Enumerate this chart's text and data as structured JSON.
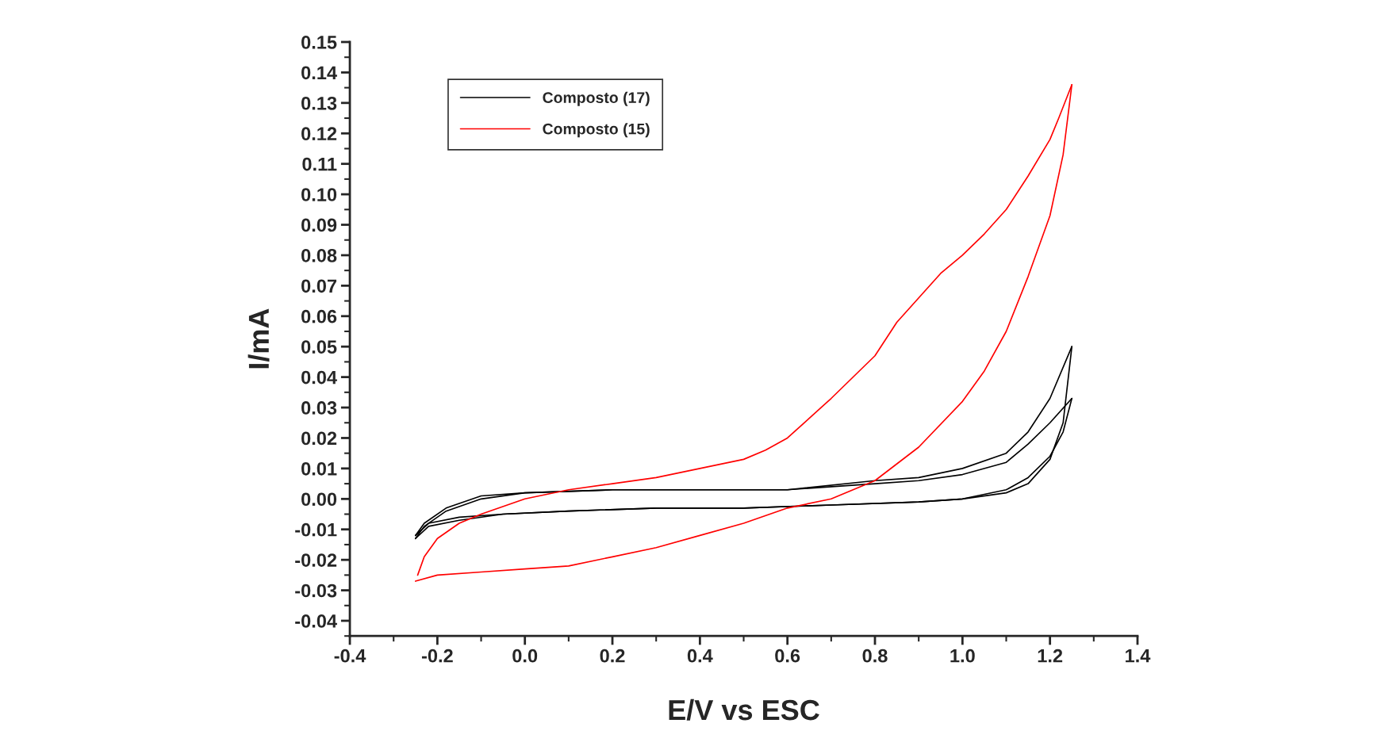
{
  "chart_data": {
    "type": "line",
    "xlabel": "E/V vs ESC",
    "ylabel": "I/mA",
    "xlim": [
      -0.4,
      1.4
    ],
    "ylim": [
      -0.045,
      0.15
    ],
    "xticks": [
      {
        "value": -0.4,
        "label": "-0.4"
      },
      {
        "value": -0.2,
        "label": "-0.2"
      },
      {
        "value": 0.0,
        "label": "0.0"
      },
      {
        "value": 0.2,
        "label": "0.2"
      },
      {
        "value": 0.4,
        "label": "0.4"
      },
      {
        "value": 0.6,
        "label": "0.6"
      },
      {
        "value": 0.8,
        "label": "0.8"
      },
      {
        "value": 1.0,
        "label": "1.0"
      },
      {
        "value": 1.2,
        "label": "1.2"
      },
      {
        "value": 1.4,
        "label": "1.4"
      }
    ],
    "yticks": [
      {
        "value": -0.04,
        "label": "-0.04"
      },
      {
        "value": -0.03,
        "label": "-0.03"
      },
      {
        "value": -0.02,
        "label": "-0.02"
      },
      {
        "value": -0.01,
        "label": "-0.01"
      },
      {
        "value": 0.0,
        "label": "0.00"
      },
      {
        "value": 0.01,
        "label": "0.01"
      },
      {
        "value": 0.02,
        "label": "0.02"
      },
      {
        "value": 0.03,
        "label": "0.03"
      },
      {
        "value": 0.04,
        "label": "0.04"
      },
      {
        "value": 0.05,
        "label": "0.05"
      },
      {
        "value": 0.06,
        "label": "0.06"
      },
      {
        "value": 0.07,
        "label": "0.07"
      },
      {
        "value": 0.08,
        "label": "0.08"
      },
      {
        "value": 0.09,
        "label": "0.09"
      },
      {
        "value": 0.1,
        "label": "0.10"
      },
      {
        "value": 0.11,
        "label": "0.11"
      },
      {
        "value": 0.12,
        "label": "0.12"
      },
      {
        "value": 0.13,
        "label": "0.13"
      },
      {
        "value": 0.14,
        "label": "0.14"
      },
      {
        "value": 0.15,
        "label": "0.15"
      }
    ],
    "grid": false,
    "legend": "top left",
    "marker": "none",
    "line_style": "solid",
    "series": [
      {
        "name": "Composto (17)",
        "color": "#000000",
        "x": [
          -0.25,
          -0.22,
          -0.15,
          -0.05,
          0.1,
          0.3,
          0.5,
          0.7,
          0.9,
          1.0,
          1.1,
          1.15,
          1.2,
          1.23,
          1.25
        ],
        "values": [
          -0.013,
          -0.009,
          -0.007,
          -0.005,
          -0.004,
          -0.003,
          -0.003,
          -0.002,
          -0.001,
          0.0,
          0.002,
          0.005,
          0.013,
          0.025,
          0.05
        ]
      },
      {
        "color": "#000000",
        "x": [
          1.25,
          1.2,
          1.15,
          1.1,
          1.0,
          0.9,
          0.8,
          0.6,
          0.4,
          0.2,
          0.0,
          -0.1,
          -0.18,
          -0.23,
          -0.25
        ],
        "values": [
          0.05,
          0.033,
          0.022,
          0.015,
          0.01,
          0.007,
          0.006,
          0.003,
          0.003,
          0.003,
          0.002,
          0.001,
          -0.003,
          -0.008,
          -0.012
        ]
      },
      {
        "color": "#000000",
        "x": [
          -0.25,
          -0.22,
          -0.15,
          -0.05,
          0.1,
          0.3,
          0.5,
          0.7,
          0.9,
          1.0,
          1.1,
          1.15,
          1.2,
          1.23,
          1.25
        ],
        "values": [
          -0.012,
          -0.008,
          -0.006,
          -0.005,
          -0.004,
          -0.003,
          -0.003,
          -0.002,
          -0.001,
          0.0,
          0.003,
          0.007,
          0.014,
          0.022,
          0.033
        ]
      },
      {
        "color": "#000000",
        "x": [
          1.25,
          1.2,
          1.15,
          1.1,
          1.0,
          0.9,
          0.8,
          0.6,
          0.4,
          0.2,
          0.0,
          -0.1,
          -0.18,
          -0.23,
          -0.25
        ],
        "values": [
          0.033,
          0.025,
          0.018,
          0.012,
          0.008,
          0.006,
          0.005,
          0.003,
          0.003,
          0.003,
          0.002,
          0.0,
          -0.004,
          -0.009,
          -0.013
        ]
      },
      {
        "name": "Composto (15)",
        "color": "#ff0000",
        "x": [
          -0.25,
          -0.2,
          -0.1,
          0.0,
          0.1,
          0.2,
          0.3,
          0.4,
          0.5,
          0.6,
          0.7,
          0.8,
          0.9,
          1.0,
          1.05,
          1.1,
          1.15,
          1.2,
          1.23,
          1.25
        ],
        "values": [
          -0.027,
          -0.025,
          -0.024,
          -0.023,
          -0.022,
          -0.019,
          -0.016,
          -0.012,
          -0.008,
          -0.003,
          0.0,
          0.006,
          0.017,
          0.032,
          0.042,
          0.055,
          0.073,
          0.093,
          0.113,
          0.136
        ]
      },
      {
        "color": "#ff0000",
        "x": [
          1.25,
          1.22,
          1.2,
          1.15,
          1.1,
          1.05,
          1.0,
          0.95,
          0.9,
          0.85,
          0.8,
          0.7,
          0.6,
          0.55,
          0.5,
          0.4,
          0.3,
          0.2,
          0.1,
          0.0,
          -0.1,
          -0.15,
          -0.2,
          -0.23,
          -0.245
        ],
        "values": [
          0.136,
          0.125,
          0.118,
          0.106,
          0.095,
          0.087,
          0.08,
          0.074,
          0.066,
          0.058,
          0.047,
          0.033,
          0.02,
          0.016,
          0.013,
          0.01,
          0.007,
          0.005,
          0.003,
          0.0,
          -0.005,
          -0.008,
          -0.013,
          -0.019,
          -0.025
        ]
      }
    ]
  }
}
